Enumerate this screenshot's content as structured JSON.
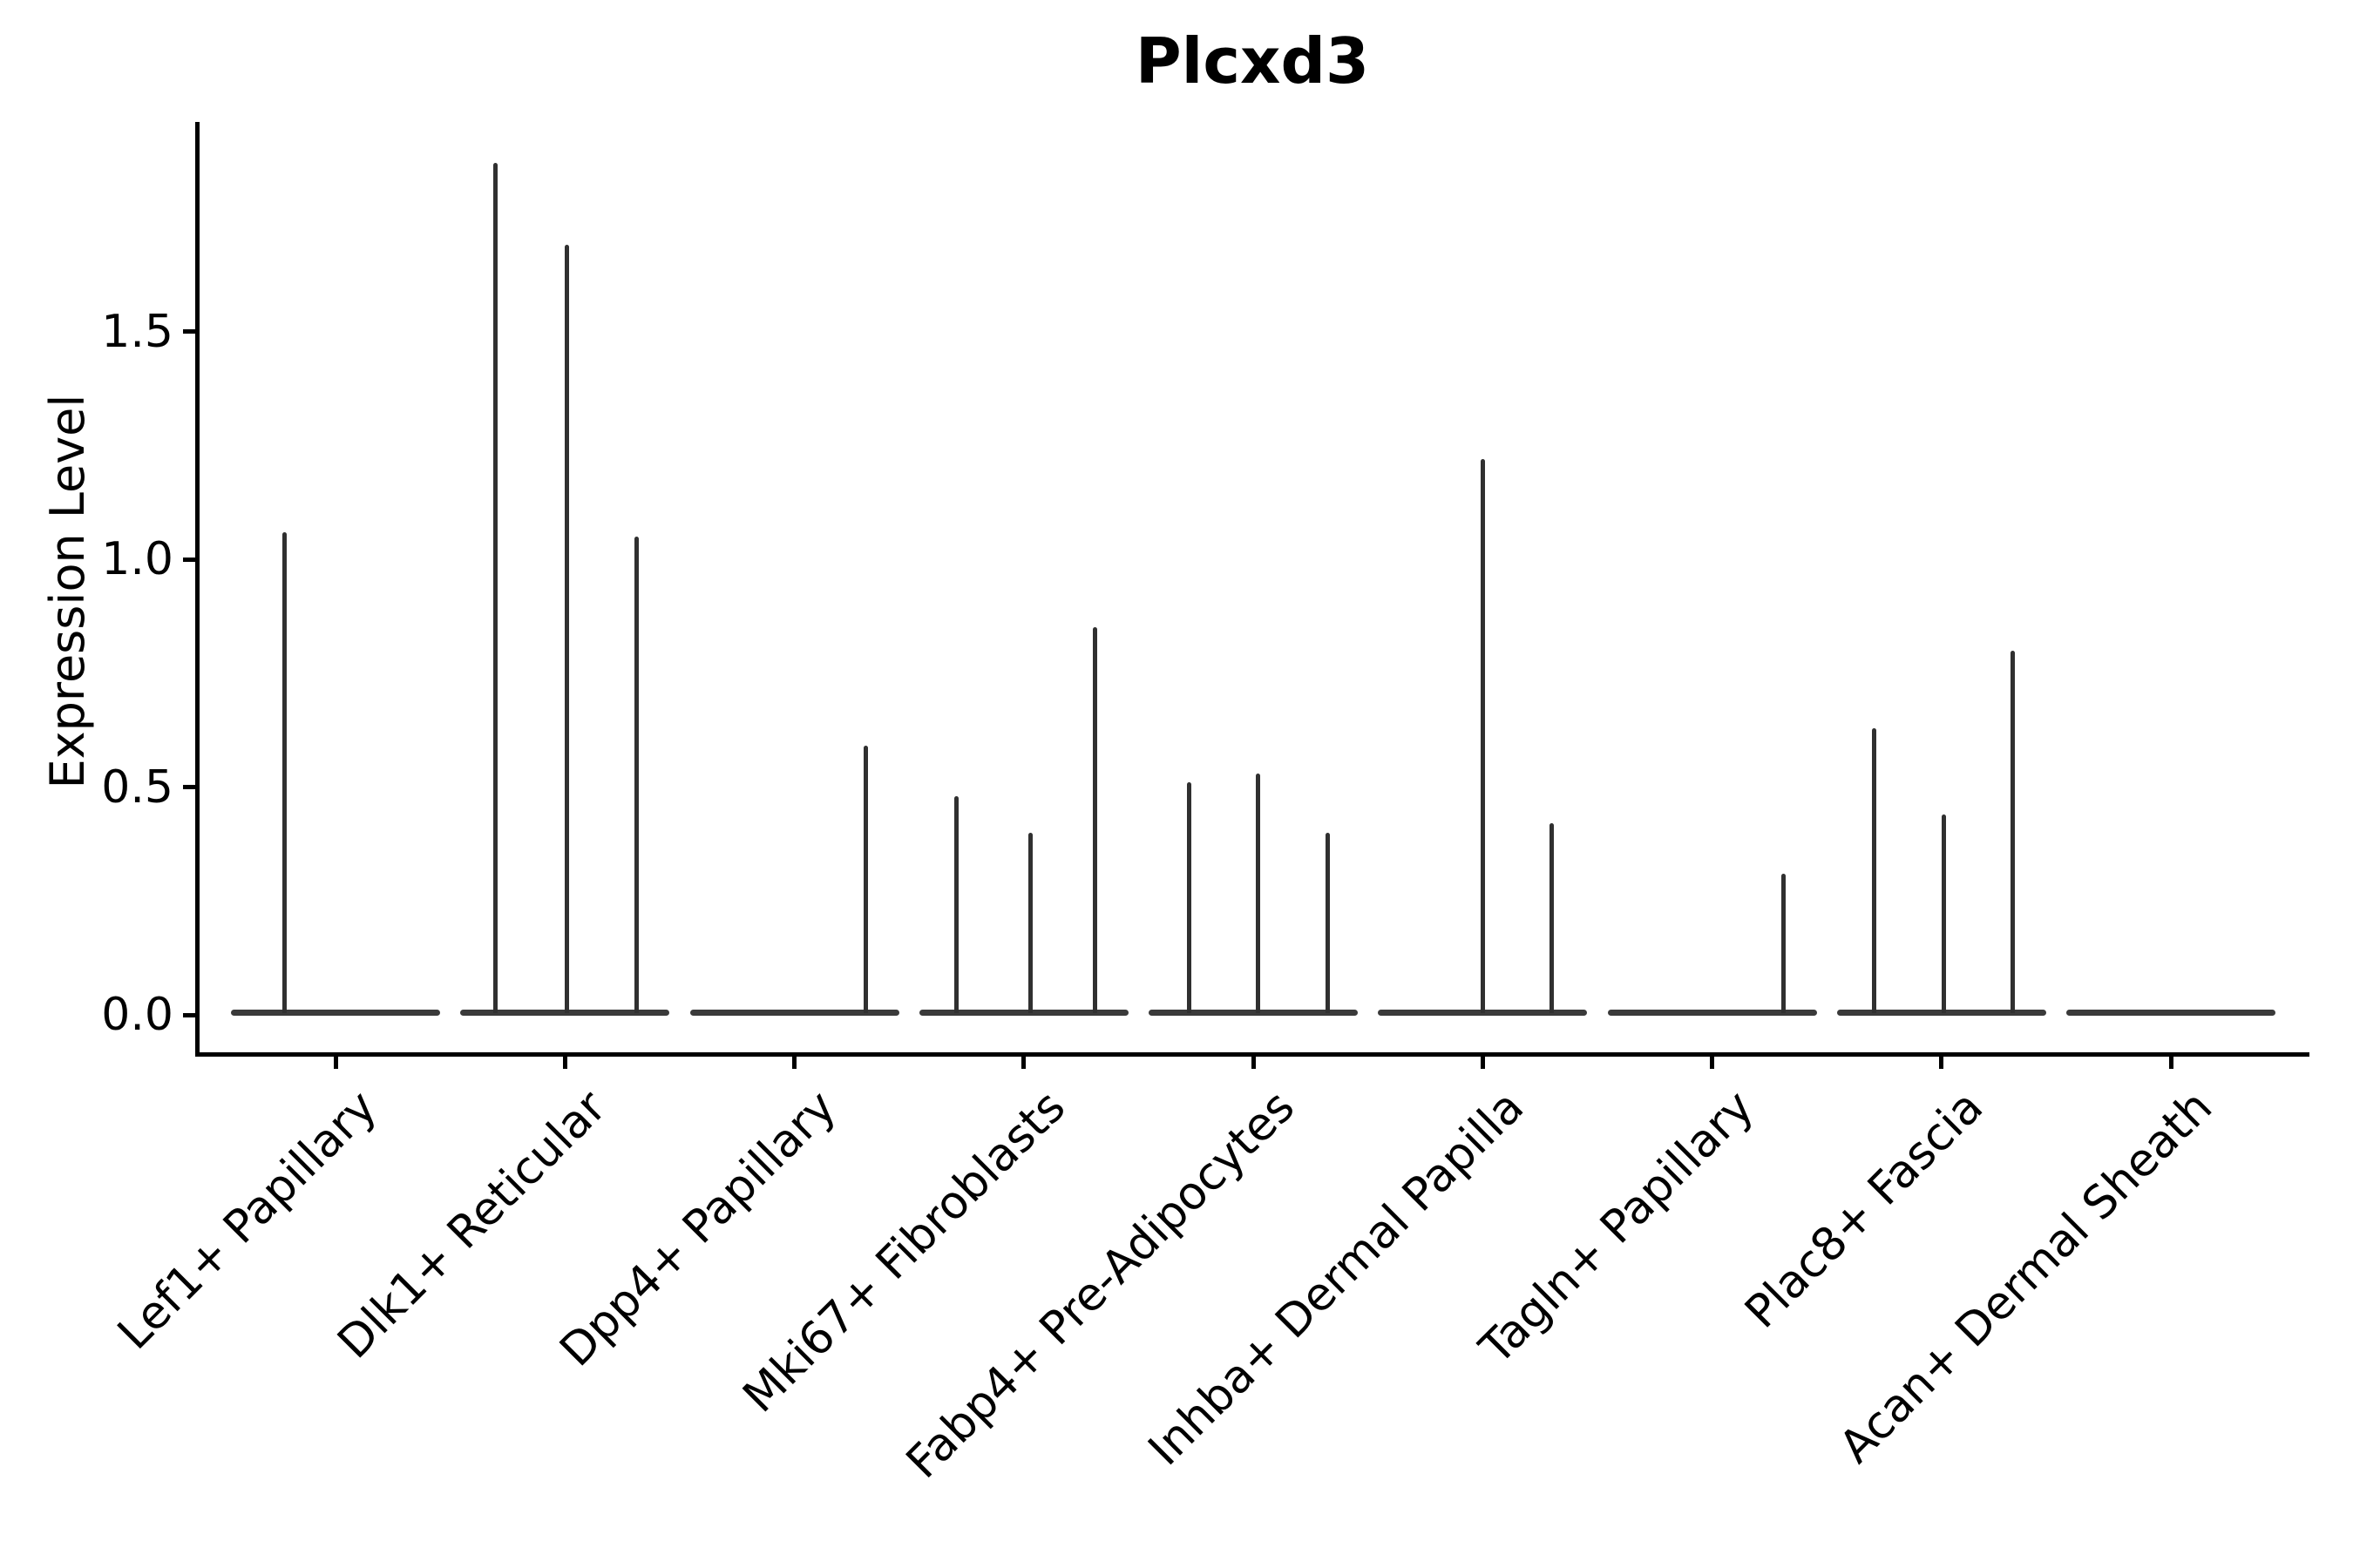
{
  "chart_data": {
    "type": "violin",
    "title": "Plcxd3",
    "xlabel": "",
    "ylabel": "Expression Level",
    "yticks": [
      "0.0",
      "0.5",
      "1.0",
      "1.5"
    ],
    "ytick_values": [
      0.0,
      0.5,
      1.0,
      1.5
    ],
    "ylim": [
      -0.09,
      1.96
    ],
    "grid": false,
    "legend": "none",
    "categories": [
      "Lef1+ Papillary",
      "Dlk1+ Reticular",
      "Dpp4+ Papillary",
      "Mki67+ Fibroblasts",
      "Fabp4+ Pre-Adipocytes",
      "Inhba+ Dermal Papilla",
      "Tagln+ Papillary",
      "Plac8+ Fascia",
      "Acan+ Dermal Sheath"
    ],
    "series": [
      {
        "name": "Lef1+ Papillary",
        "baseline_value": 0.0,
        "spikes": [
          {
            "offset": -59,
            "value": 1.06
          }
        ]
      },
      {
        "name": "Dlk1+ Reticular",
        "baseline_value": 0.0,
        "spikes": [
          {
            "offset": -80,
            "value": 1.87
          },
          {
            "offset": 2,
            "value": 1.69
          },
          {
            "offset": 82,
            "value": 1.05
          }
        ]
      },
      {
        "name": "Dpp4+ Papillary",
        "baseline_value": 0.0,
        "spikes": [
          {
            "offset": 82,
            "value": 0.59
          }
        ]
      },
      {
        "name": "Mki67+ Fibroblasts",
        "baseline_value": 0.0,
        "spikes": [
          {
            "offset": -77,
            "value": 0.48
          },
          {
            "offset": 8,
            "value": 0.4
          },
          {
            "offset": 82,
            "value": 0.85
          }
        ]
      },
      {
        "name": "Fabp4+ Pre-Adipocytes",
        "baseline_value": 0.0,
        "spikes": [
          {
            "offset": -74,
            "value": 0.51
          },
          {
            "offset": 5,
            "value": 0.53
          },
          {
            "offset": 85,
            "value": 0.4
          }
        ]
      },
      {
        "name": "Inhba+ Dermal Papilla",
        "baseline_value": 0.0,
        "spikes": [
          {
            "offset": 0,
            "value": 1.22
          },
          {
            "offset": 79,
            "value": 0.42
          }
        ]
      },
      {
        "name": "Tagln+ Papillary",
        "baseline_value": 0.0,
        "spikes": [
          {
            "offset": 82,
            "value": 0.31
          }
        ]
      },
      {
        "name": "Plac8+ Fascia",
        "baseline_value": 0.0,
        "spikes": [
          {
            "offset": -77,
            "value": 0.63
          },
          {
            "offset": 3,
            "value": 0.44
          },
          {
            "offset": 82,
            "value": 0.8
          }
        ]
      },
      {
        "name": "Acan+ Dermal Sheath",
        "baseline_value": 0.0,
        "spikes": []
      }
    ],
    "colors": {
      "background": "#ffffff",
      "axis": "#000000",
      "text": "#000000",
      "violin_body": "#3a3a3a",
      "spike": "#303030"
    }
  }
}
